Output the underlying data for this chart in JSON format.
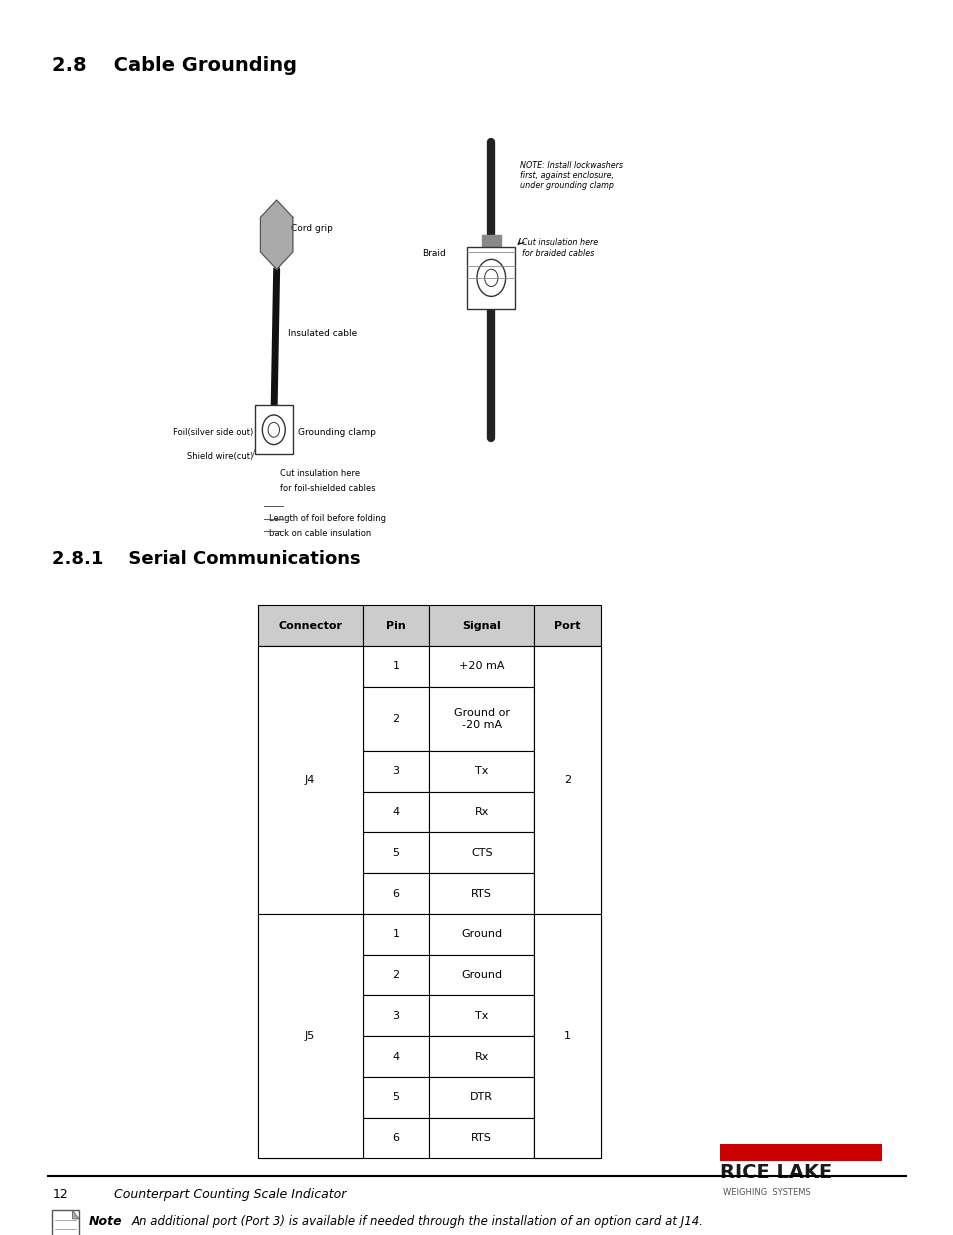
{
  "title_28": "2.8    Cable Grounding",
  "title_281": "2.8.1    Serial Communications",
  "bg_color": "#ffffff",
  "heading_color": "#000000",
  "table_header_bg": "#d0d0d0",
  "table_border_color": "#000000",
  "table_rows": [
    [
      "Connector",
      "Pin",
      "Signal",
      "Port"
    ],
    [
      "J4",
      "1",
      "+20 mA",
      "2"
    ],
    [
      "",
      "2",
      "Ground or\n-20 mA",
      ""
    ],
    [
      "",
      "3",
      "Tx",
      ""
    ],
    [
      "",
      "4",
      "Rx",
      ""
    ],
    [
      "",
      "5",
      "CTS",
      ""
    ],
    [
      "",
      "6",
      "RTS",
      ""
    ],
    [
      "J5",
      "1",
      "Ground",
      "1"
    ],
    [
      "",
      "2",
      "Ground",
      ""
    ],
    [
      "",
      "3",
      "Tx",
      ""
    ],
    [
      "",
      "4",
      "Rx",
      ""
    ],
    [
      "",
      "5",
      "DTR",
      ""
    ],
    [
      "",
      "6",
      "RTS",
      ""
    ]
  ],
  "footer_page": "12",
  "footer_text": "Counterpart Counting Scale Indicator",
  "note_text": "An additional port (Port 3) is available if needed through the installation of an option card at J14.",
  "rice_lake_text": "RICE LAKE",
  "weighing_systems_text": "WEIGHING  SYSTEMS"
}
